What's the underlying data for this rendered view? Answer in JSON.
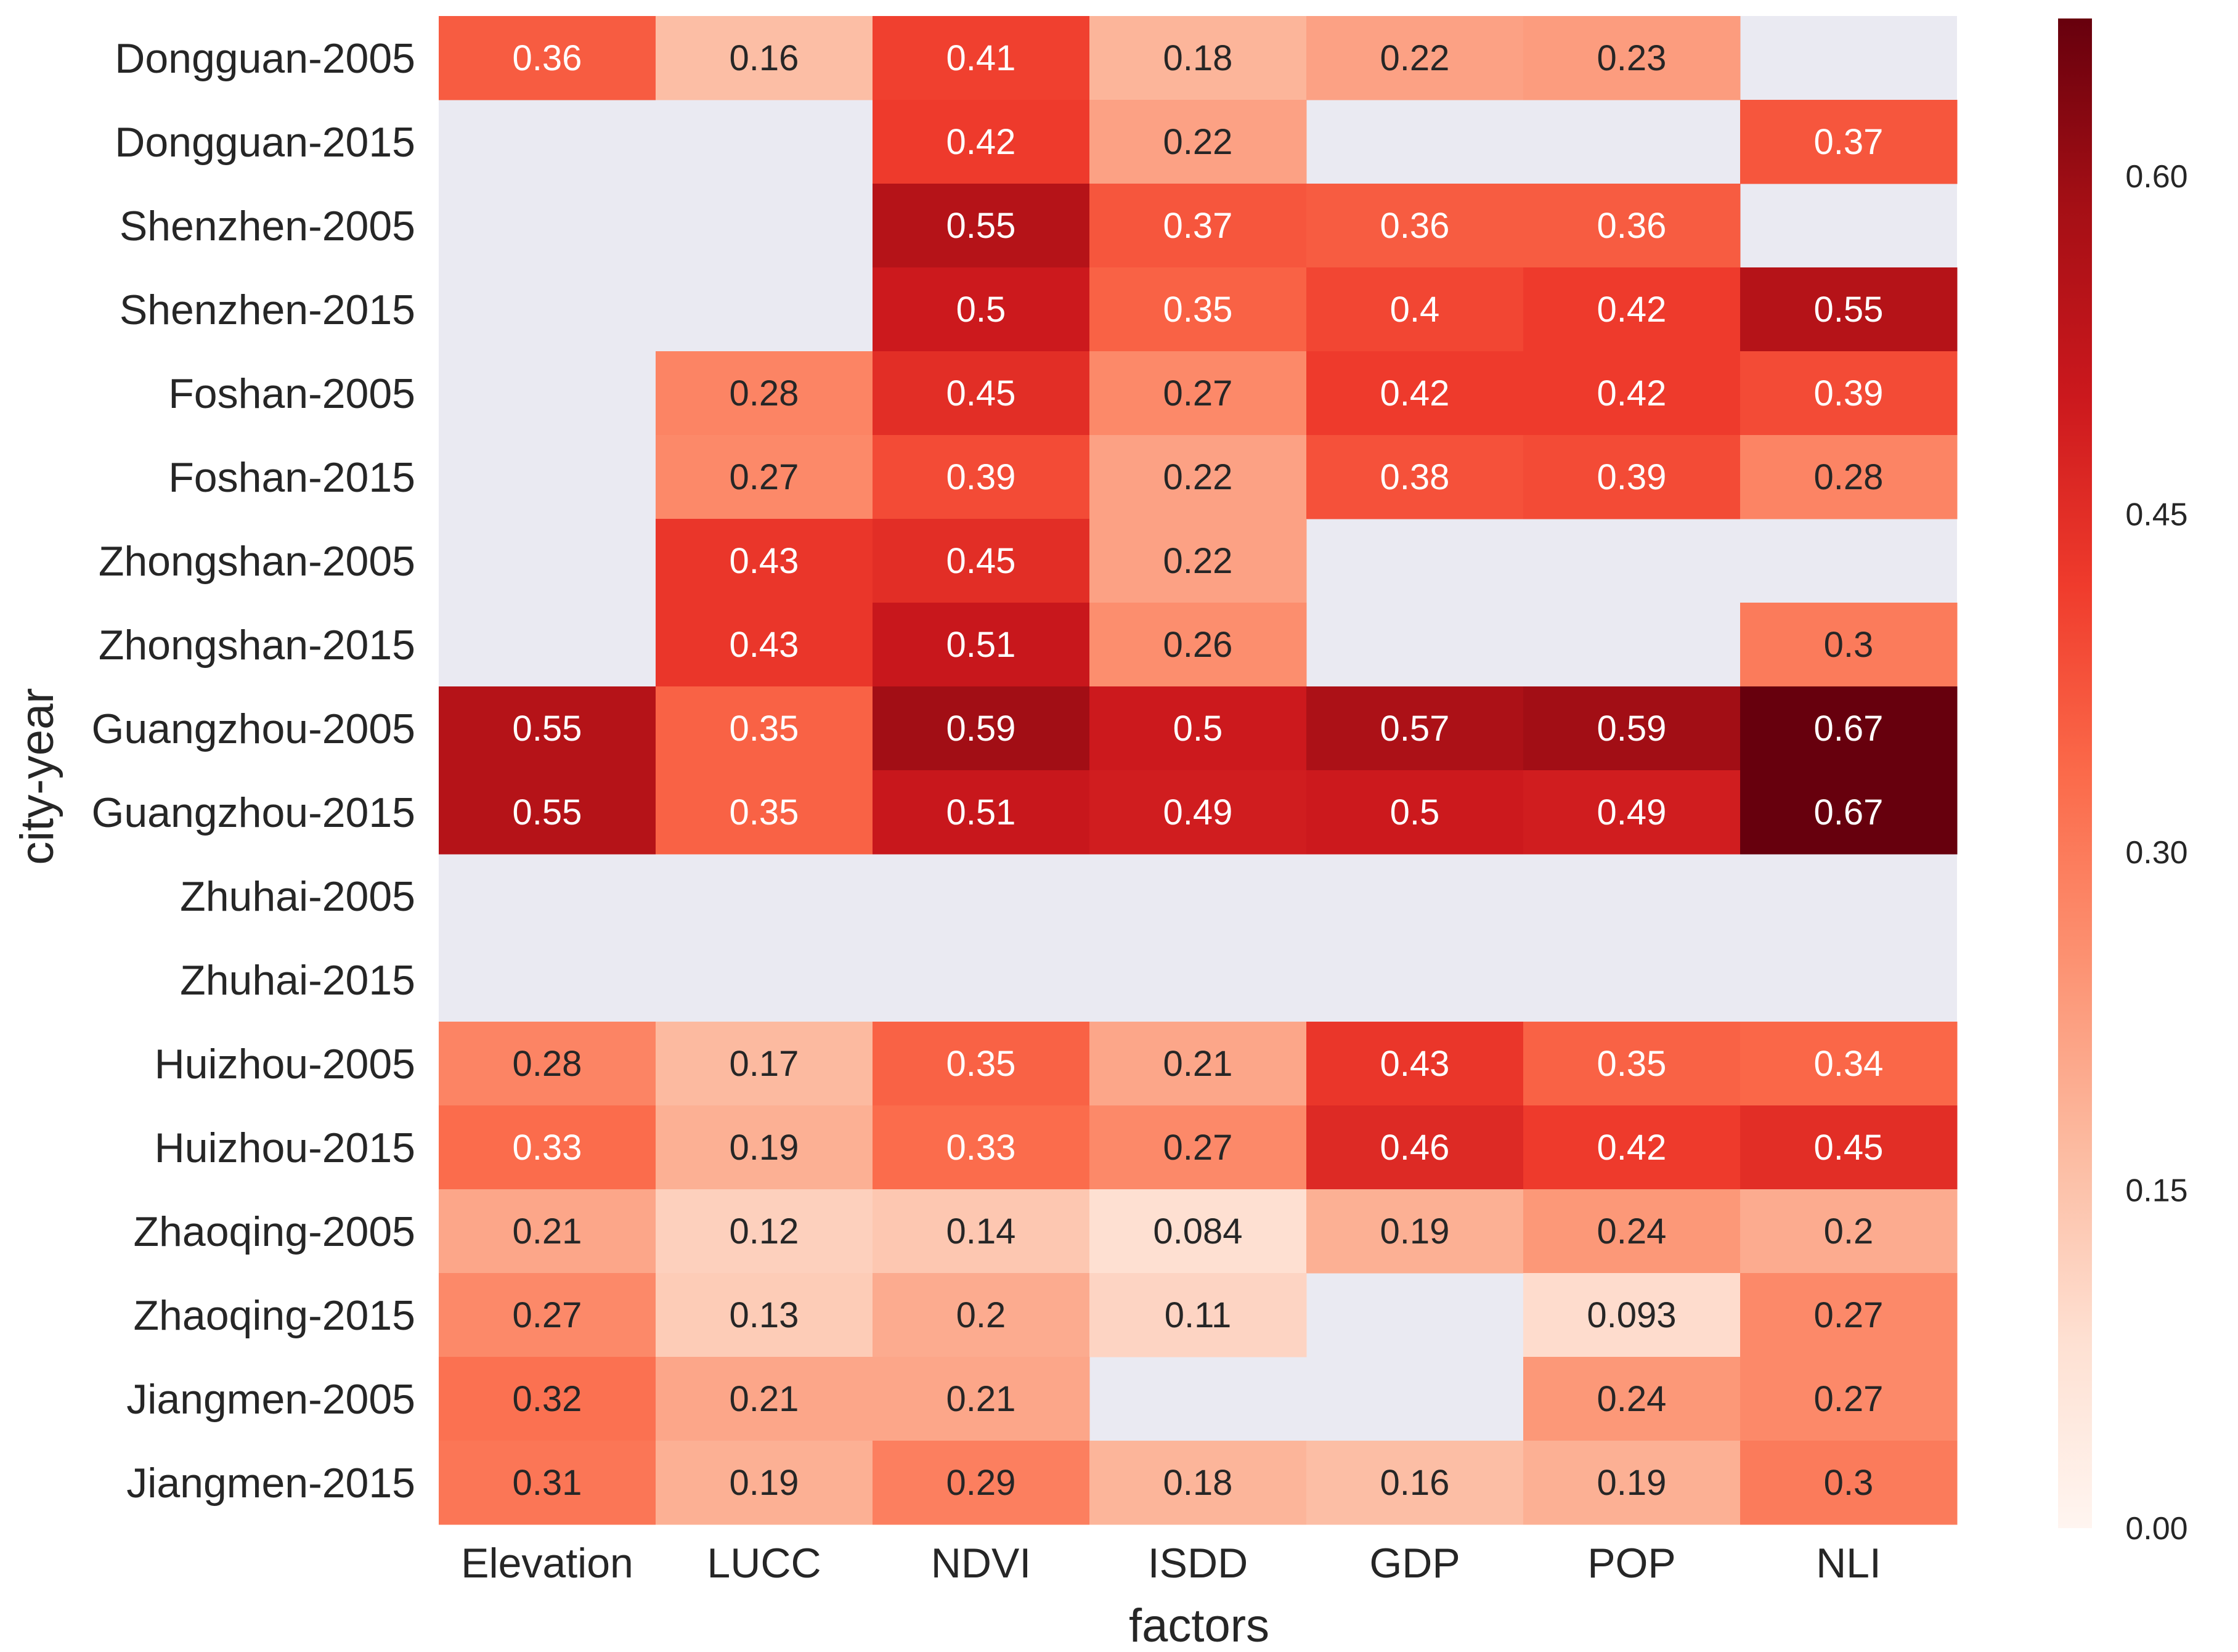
{
  "chart_data": {
    "type": "heatmap",
    "title": "",
    "xlabel": "factors",
    "ylabel": "city-year",
    "colormap": "Reds",
    "missing_color": "#eaeaf2",
    "color_range": [
      0,
      0.67
    ],
    "colorbar_ticks": [
      "0.00",
      "0.15",
      "0.30",
      "0.45",
      "0.60"
    ],
    "colorbar_tick_values": [
      0,
      0.15,
      0.3,
      0.45,
      0.6
    ],
    "columns": [
      "Elevation",
      "LUCC",
      "NDVI",
      "ISDD",
      "GDP",
      "POP",
      "NLI"
    ],
    "rows": [
      "Dongguan-2005",
      "Dongguan-2015",
      "Shenzhen-2005",
      "Shenzhen-2015",
      "Foshan-2005",
      "Foshan-2015",
      "Zhongshan-2005",
      "Zhongshan-2015",
      "Guangzhou-2005",
      "Guangzhou-2015",
      "Zhuhai-2005",
      "Zhuhai-2015",
      "Huizhou-2005",
      "Huizhou-2015",
      "Zhaoqing-2005",
      "Zhaoqing-2015",
      "Jiangmen-2005",
      "Jiangmen-2015"
    ],
    "values": [
      [
        "0.36",
        "0.16",
        "0.41",
        "0.18",
        "0.22",
        "0.23",
        null
      ],
      [
        null,
        null,
        "0.42",
        "0.22",
        null,
        null,
        "0.37"
      ],
      [
        null,
        null,
        "0.55",
        "0.37",
        "0.36",
        "0.36",
        null
      ],
      [
        null,
        null,
        "0.5",
        "0.35",
        "0.4",
        "0.42",
        "0.55"
      ],
      [
        null,
        "0.28",
        "0.45",
        "0.27",
        "0.42",
        "0.42",
        "0.39"
      ],
      [
        null,
        "0.27",
        "0.39",
        "0.22",
        "0.38",
        "0.39",
        "0.28"
      ],
      [
        null,
        "0.43",
        "0.45",
        "0.22",
        null,
        null,
        null
      ],
      [
        null,
        "0.43",
        "0.51",
        "0.26",
        null,
        null,
        "0.3"
      ],
      [
        "0.55",
        "0.35",
        "0.59",
        "0.5",
        "0.57",
        "0.59",
        "0.67"
      ],
      [
        "0.55",
        "0.35",
        "0.51",
        "0.49",
        "0.5",
        "0.49",
        "0.67"
      ],
      [
        null,
        null,
        null,
        null,
        null,
        null,
        null
      ],
      [
        null,
        null,
        null,
        null,
        null,
        null,
        null
      ],
      [
        "0.28",
        "0.17",
        "0.35",
        "0.21",
        "0.43",
        "0.35",
        "0.34"
      ],
      [
        "0.33",
        "0.19",
        "0.33",
        "0.27",
        "0.46",
        "0.42",
        "0.45"
      ],
      [
        "0.21",
        "0.12",
        "0.14",
        "0.084",
        "0.19",
        "0.24",
        "0.2"
      ],
      [
        "0.27",
        "0.13",
        "0.2",
        "0.11",
        null,
        "0.093",
        "0.27"
      ],
      [
        "0.32",
        "0.21",
        "0.21",
        null,
        null,
        "0.24",
        "0.27"
      ],
      [
        "0.31",
        "0.19",
        "0.29",
        "0.18",
        "0.16",
        "0.19",
        "0.3"
      ]
    ]
  }
}
